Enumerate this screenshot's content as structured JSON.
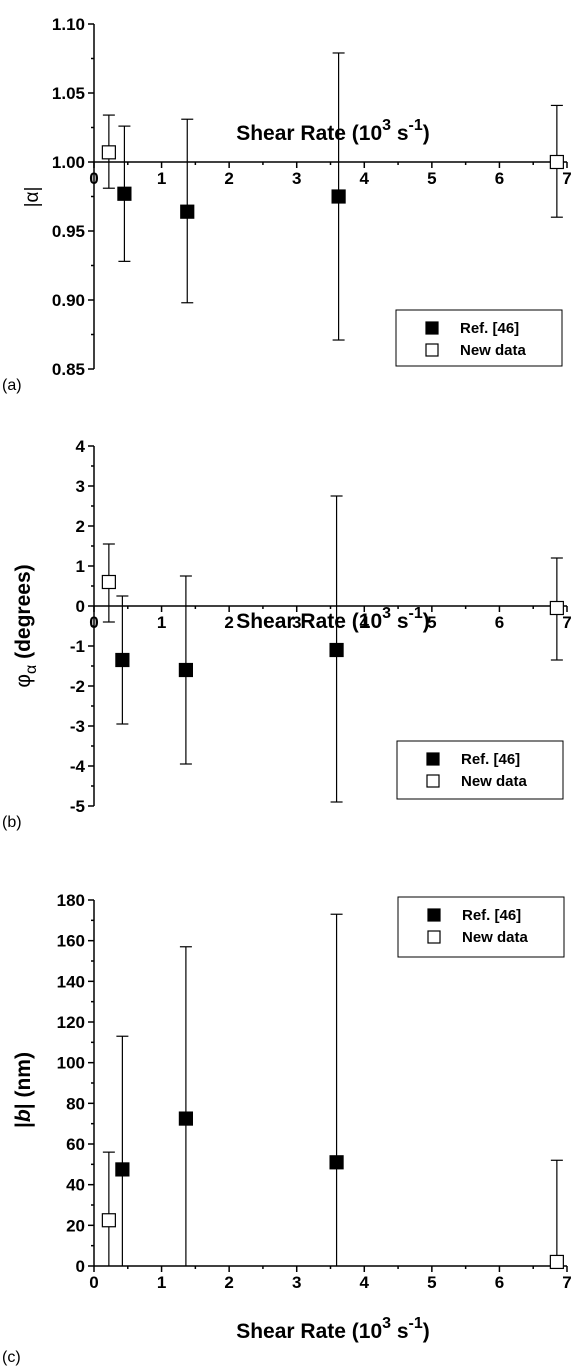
{
  "chart_data": [
    {
      "type": "scatter",
      "panel_label": "(a)",
      "ylabel": "|α|",
      "xlabel": "Shear Rate (10",
      "xlabel_sup": "3",
      "xlabel_unit": " s",
      "xlabel_unit_sup": "-1",
      "xlabel_close": ")",
      "xlim": [
        0,
        7
      ],
      "ylim": [
        0.85,
        1.1
      ],
      "xticks": [
        "0",
        "1",
        "2",
        "3",
        "4",
        "5",
        "6",
        "7"
      ],
      "xtick_values": [
        0,
        1,
        2,
        3,
        4,
        5,
        6,
        7
      ],
      "yticks": [
        "0.85",
        "0.90",
        "0.95",
        "1.00",
        "1.05",
        "1.10"
      ],
      "ytick_values": [
        0.85,
        0.9,
        0.95,
        1.0,
        1.05,
        1.1
      ],
      "x_axis_crosses_y": 1.0,
      "legend_position": "bottom-right",
      "series": [
        {
          "name": "Ref. [46]",
          "marker": "filled-square",
          "points": [
            {
              "x": 0.45,
              "y": 0.977,
              "ylo": 0.928,
              "yhi": 1.026
            },
            {
              "x": 1.38,
              "y": 0.964,
              "ylo": 0.898,
              "yhi": 1.031
            },
            {
              "x": 3.62,
              "y": 0.975,
              "ylo": 0.871,
              "yhi": 1.079
            }
          ]
        },
        {
          "name": "New data",
          "marker": "open-square",
          "points": [
            {
              "x": 0.22,
              "y": 1.007,
              "ylo": 0.981,
              "yhi": 1.034
            },
            {
              "x": 6.85,
              "y": 1.0,
              "ylo": 0.96,
              "yhi": 1.041
            }
          ]
        }
      ]
    },
    {
      "type": "scatter",
      "panel_label": "(b)",
      "ylabel": "φ",
      "ylabel_sub": "α",
      "ylabel_unit": " (degrees)",
      "xlabel": "Shear Rate (10",
      "xlabel_sup": "3",
      "xlabel_unit": " s",
      "xlabel_unit_sup": "-1",
      "xlabel_close": ")",
      "xlim": [
        0,
        7
      ],
      "ylim": [
        -5,
        4
      ],
      "xticks": [
        "0",
        "1",
        "2",
        "3",
        "4",
        "5",
        "6",
        "7"
      ],
      "xtick_values": [
        0,
        1,
        2,
        3,
        4,
        5,
        6,
        7
      ],
      "yticks": [
        "-5",
        "-4",
        "-3",
        "-2",
        "-1",
        "0",
        "1",
        "2",
        "3",
        "4"
      ],
      "ytick_values": [
        -5,
        -4,
        -3,
        -2,
        -1,
        0,
        1,
        2,
        3,
        4
      ],
      "x_axis_crosses_y": 0,
      "legend_position": "bottom-right",
      "series": [
        {
          "name": "Ref. [46]",
          "marker": "filled-square",
          "points": [
            {
              "x": 0.42,
              "y": -1.35,
              "ylo": -2.95,
              "yhi": 0.25
            },
            {
              "x": 1.36,
              "y": -1.6,
              "ylo": -3.95,
              "yhi": 0.75
            },
            {
              "x": 3.59,
              "y": -1.1,
              "ylo": -4.9,
              "yhi": 2.75
            }
          ]
        },
        {
          "name": "New data",
          "marker": "open-square",
          "points": [
            {
              "x": 0.22,
              "y": 0.6,
              "ylo": -0.4,
              "yhi": 1.55
            },
            {
              "x": 6.85,
              "y": -0.05,
              "ylo": -1.35,
              "yhi": 1.2
            }
          ]
        }
      ]
    },
    {
      "type": "scatter",
      "panel_label": "(c)",
      "ylabel": "|",
      "ylabel_italic": "b",
      "ylabel_unit": "| (nm)",
      "xlabel": "Shear Rate (10",
      "xlabel_sup": "3",
      "xlabel_unit": " s",
      "xlabel_unit_sup": "-1",
      "xlabel_close": ")",
      "xlim": [
        0,
        7
      ],
      "ylim": [
        0,
        180
      ],
      "xticks": [
        "0",
        "1",
        "2",
        "3",
        "4",
        "5",
        "6",
        "7"
      ],
      "xtick_values": [
        0,
        1,
        2,
        3,
        4,
        5,
        6,
        7
      ],
      "yticks": [
        "0",
        "20",
        "40",
        "60",
        "80",
        "100",
        "120",
        "140",
        "160",
        "180"
      ],
      "ytick_values": [
        0,
        20,
        40,
        60,
        80,
        100,
        120,
        140,
        160,
        180
      ],
      "x_axis_crosses_y": 0,
      "legend_position": "top-right",
      "series": [
        {
          "name": "Ref. [46]",
          "marker": "filled-square",
          "points": [
            {
              "x": 0.42,
              "y": 47.5,
              "ylo": 0,
              "yhi": 113
            },
            {
              "x": 1.36,
              "y": 72.5,
              "ylo": 0,
              "yhi": 157
            },
            {
              "x": 3.59,
              "y": 51,
              "ylo": 0,
              "yhi": 173
            }
          ]
        },
        {
          "name": "New data",
          "marker": "open-square",
          "points": [
            {
              "x": 0.22,
              "y": 22.5,
              "ylo": 0,
              "yhi": 56
            },
            {
              "x": 6.85,
              "y": 2,
              "ylo": 0,
              "yhi": 52
            }
          ]
        }
      ]
    }
  ]
}
